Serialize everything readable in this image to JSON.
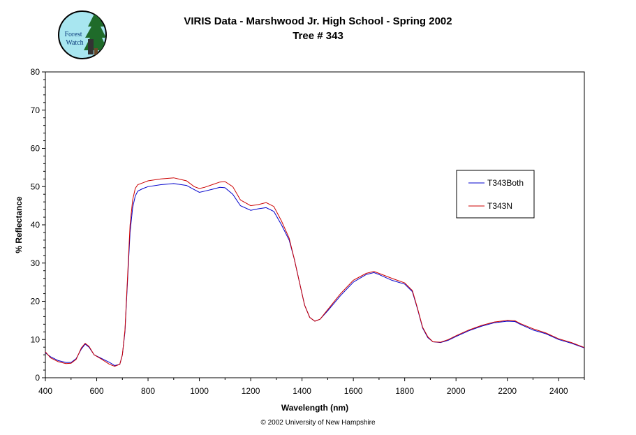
{
  "header": {
    "title": "VIRIS Data - Marshwood Jr. High School - Spring 2002",
    "subtitle": "Tree # 343"
  },
  "logo": {
    "text": "Forest Watch",
    "icon": "forest-watch-logo-icon"
  },
  "footer": {
    "copyright": "© 2002 University of New Hampshire"
  },
  "colors": {
    "T343Both": "#0000cc",
    "T343N": "#cc0000"
  },
  "chart_data": {
    "type": "line",
    "title": "VIRIS Data - Marshwood Jr. High School - Spring 2002",
    "subtitle": "Tree # 343",
    "xlabel": "Wavelength (nm)",
    "ylabel": "% Reflectance",
    "xlim": [
      400,
      2500
    ],
    "ylim": [
      0,
      80
    ],
    "xticks": [
      400,
      600,
      800,
      1000,
      1200,
      1400,
      1600,
      1800,
      2000,
      2200,
      2400
    ],
    "yticks": [
      0,
      10,
      20,
      30,
      40,
      50,
      60,
      70,
      80
    ],
    "grid": false,
    "legend": "right",
    "series": [
      {
        "name": "T343Both",
        "x": [
          400,
          420,
          450,
          480,
          500,
          520,
          540,
          555,
          570,
          590,
          620,
          650,
          670,
          690,
          700,
          710,
          720,
          730,
          740,
          750,
          760,
          780,
          800,
          850,
          900,
          950,
          980,
          1000,
          1020,
          1050,
          1080,
          1100,
          1130,
          1160,
          1200,
          1230,
          1260,
          1290,
          1320,
          1350,
          1370,
          1390,
          1410,
          1430,
          1450,
          1470,
          1500,
          1550,
          1600,
          1650,
          1680,
          1700,
          1750,
          1800,
          1830,
          1850,
          1870,
          1890,
          1910,
          1940,
          1970,
          2000,
          2050,
          2100,
          2150,
          2200,
          2230,
          2250,
          2300,
          2350,
          2400,
          2450,
          2500
        ],
        "y": [
          6.5,
          5.5,
          4.5,
          4.0,
          4.0,
          5.0,
          7.5,
          8.8,
          8.0,
          6.0,
          5.0,
          4.0,
          3.2,
          3.5,
          6.0,
          12.0,
          25.0,
          38.0,
          44.5,
          47.5,
          48.8,
          49.5,
          50.0,
          50.5,
          50.8,
          50.3,
          49.2,
          48.5,
          48.8,
          49.3,
          49.8,
          49.7,
          48.0,
          45.0,
          43.8,
          44.2,
          44.5,
          43.5,
          40.0,
          36.0,
          31.0,
          25.0,
          19.0,
          15.8,
          14.8,
          15.3,
          17.5,
          21.5,
          25.0,
          27.0,
          27.5,
          27.0,
          25.5,
          24.5,
          22.5,
          18.0,
          13.0,
          10.5,
          9.4,
          9.2,
          9.8,
          10.8,
          12.3,
          13.5,
          14.4,
          14.8,
          14.7,
          14.0,
          12.5,
          11.5,
          10.0,
          9.0,
          7.8
        ]
      },
      {
        "name": "T343N",
        "x": [
          400,
          420,
          450,
          480,
          500,
          520,
          540,
          555,
          570,
          590,
          620,
          650,
          670,
          690,
          700,
          710,
          720,
          730,
          740,
          750,
          760,
          780,
          800,
          850,
          900,
          950,
          980,
          1000,
          1020,
          1050,
          1080,
          1100,
          1130,
          1160,
          1200,
          1230,
          1260,
          1290,
          1320,
          1350,
          1370,
          1390,
          1410,
          1430,
          1450,
          1470,
          1500,
          1550,
          1600,
          1650,
          1680,
          1700,
          1750,
          1800,
          1830,
          1850,
          1870,
          1890,
          1910,
          1940,
          1970,
          2000,
          2050,
          2100,
          2150,
          2200,
          2230,
          2250,
          2300,
          2350,
          2400,
          2450,
          2500
        ],
        "y": [
          6.8,
          5.2,
          4.2,
          3.7,
          3.8,
          4.8,
          7.8,
          9.0,
          8.2,
          6.0,
          4.8,
          3.5,
          3.0,
          3.5,
          6.0,
          12.5,
          26.0,
          40.0,
          46.5,
          49.5,
          50.5,
          51.0,
          51.5,
          52.0,
          52.3,
          51.5,
          50.0,
          49.5,
          49.8,
          50.5,
          51.2,
          51.3,
          50.0,
          46.5,
          45.0,
          45.3,
          45.8,
          44.8,
          41.0,
          36.5,
          31.0,
          25.0,
          19.0,
          15.8,
          14.8,
          15.3,
          17.8,
          22.0,
          25.5,
          27.3,
          27.8,
          27.3,
          26.0,
          24.8,
          22.8,
          18.2,
          13.2,
          10.7,
          9.4,
          9.3,
          10.0,
          11.0,
          12.5,
          13.7,
          14.6,
          15.0,
          14.9,
          14.2,
          12.8,
          11.7,
          10.2,
          9.2,
          7.9
        ]
      }
    ]
  }
}
